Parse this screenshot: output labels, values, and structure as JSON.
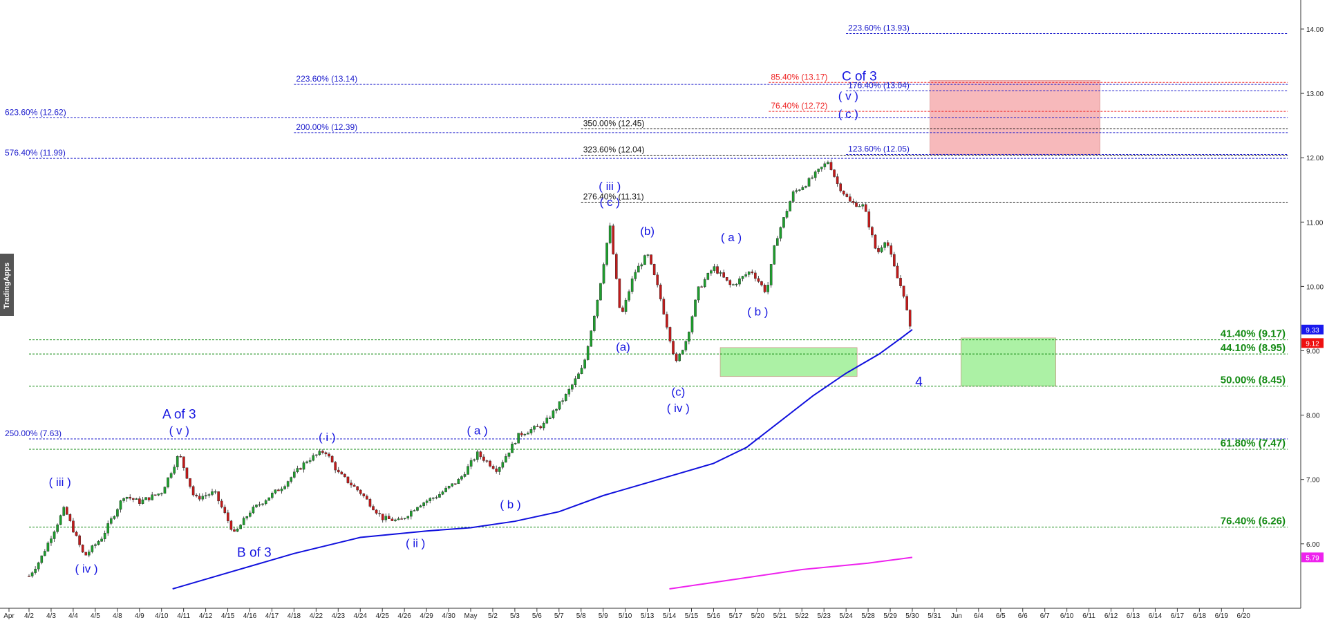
{
  "watermark": "TradingApps",
  "chart_data": {
    "type": "candlestick",
    "grid": false,
    "ylim": [
      5.3,
      14.3
    ],
    "y_ticks": [
      6,
      7,
      8,
      9,
      10,
      11,
      12,
      13,
      14
    ],
    "y_tick_labels": [
      "6.00",
      "7.00",
      "8.00",
      "9.00",
      "10.00",
      "11.00",
      "12.00",
      "13.00",
      "14.00"
    ],
    "x_tick_labels": [
      "Apr",
      "4/2",
      "4/3",
      "4/4",
      "4/5",
      "4/8",
      "4/9",
      "4/10",
      "4/11",
      "4/12",
      "4/15",
      "4/16",
      "4/17",
      "4/18",
      "4/22",
      "4/23",
      "4/24",
      "4/25",
      "4/26",
      "4/29",
      "4/30",
      "May",
      "5/2",
      "5/3",
      "5/6",
      "5/7",
      "5/8",
      "5/9",
      "5/10",
      "5/13",
      "5/14",
      "5/15",
      "5/16",
      "5/17",
      "5/20",
      "5/21",
      "5/22",
      "5/23",
      "5/24",
      "5/28",
      "5/29",
      "5/30",
      "5/31",
      "Jun",
      "6/4",
      "6/5",
      "6/6",
      "6/7",
      "6/10",
      "6/11",
      "6/12",
      "6/13",
      "6/14",
      "6/17",
      "6/18",
      "6/19",
      "6/20"
    ],
    "price_tags": [
      {
        "value": 9.33,
        "label": "9.33",
        "color": "#1a1aee"
      },
      {
        "value": 9.12,
        "label": "9.12",
        "color": "#ee1111"
      },
      {
        "value": 5.79,
        "label": "5.79",
        "color": "#ee22ee"
      }
    ],
    "key_prices": [
      {
        "t": 0.0,
        "v": 5.5
      },
      {
        "t": 0.5,
        "v": 5.75
      },
      {
        "t": 1.6,
        "v": 6.55
      },
      {
        "t": 2.5,
        "v": 5.8
      },
      {
        "t": 3.3,
        "v": 6.1
      },
      {
        "t": 4.3,
        "v": 6.75
      },
      {
        "t": 5.0,
        "v": 6.65
      },
      {
        "t": 6.0,
        "v": 6.8
      },
      {
        "t": 6.8,
        "v": 7.4
      },
      {
        "t": 7.5,
        "v": 6.7
      },
      {
        "t": 8.4,
        "v": 6.8
      },
      {
        "t": 9.3,
        "v": 6.15
      },
      {
        "t": 10.0,
        "v": 6.5
      },
      {
        "t": 11.5,
        "v": 6.9
      },
      {
        "t": 12.6,
        "v": 7.3
      },
      {
        "t": 13.4,
        "v": 7.45
      },
      {
        "t": 14.0,
        "v": 7.1
      },
      {
        "t": 15.0,
        "v": 6.8
      },
      {
        "t": 16.0,
        "v": 6.4
      },
      {
        "t": 16.8,
        "v": 6.35
      },
      {
        "t": 17.6,
        "v": 6.6
      },
      {
        "t": 18.5,
        "v": 6.75
      },
      {
        "t": 19.5,
        "v": 7.0
      },
      {
        "t": 20.3,
        "v": 7.4
      },
      {
        "t": 21.2,
        "v": 7.15
      },
      {
        "t": 22.2,
        "v": 7.7
      },
      {
        "t": 23.3,
        "v": 7.85
      },
      {
        "t": 24.3,
        "v": 8.3
      },
      {
        "t": 25.1,
        "v": 8.75
      },
      {
        "t": 25.8,
        "v": 9.9
      },
      {
        "t": 26.3,
        "v": 10.95
      },
      {
        "t": 26.8,
        "v": 9.5
      },
      {
        "t": 27.4,
        "v": 10.2
      },
      {
        "t": 28.0,
        "v": 10.5
      },
      {
        "t": 28.5,
        "v": 9.95
      },
      {
        "t": 29.3,
        "v": 8.8
      },
      {
        "t": 29.8,
        "v": 9.2
      },
      {
        "t": 30.3,
        "v": 9.95
      },
      {
        "t": 31.0,
        "v": 10.3
      },
      {
        "t": 31.8,
        "v": 10.0
      },
      {
        "t": 32.7,
        "v": 10.25
      },
      {
        "t": 33.4,
        "v": 9.9
      },
      {
        "t": 33.8,
        "v": 10.7
      },
      {
        "t": 34.6,
        "v": 11.45
      },
      {
        "t": 35.2,
        "v": 11.6
      },
      {
        "t": 36.2,
        "v": 11.95
      },
      {
        "t": 36.6,
        "v": 11.6
      },
      {
        "t": 37.2,
        "v": 11.3
      },
      {
        "t": 37.8,
        "v": 11.25
      },
      {
        "t": 38.4,
        "v": 10.5
      },
      {
        "t": 38.8,
        "v": 10.75
      },
      {
        "t": 39.3,
        "v": 10.15
      },
      {
        "t": 39.6,
        "v": 9.9
      },
      {
        "t": 40.0,
        "v": 9.15
      }
    ],
    "moving_averages": [
      {
        "color": "#1010dd",
        "points": [
          [
            6.5,
            5.3
          ],
          [
            9.0,
            5.55
          ],
          [
            12.0,
            5.85
          ],
          [
            15.0,
            6.1
          ],
          [
            18.0,
            6.2
          ],
          [
            20.0,
            6.25
          ],
          [
            22.0,
            6.35
          ],
          [
            24.0,
            6.5
          ],
          [
            26.0,
            6.75
          ],
          [
            28.0,
            6.95
          ],
          [
            29.5,
            7.1
          ],
          [
            31.0,
            7.25
          ],
          [
            32.5,
            7.5
          ],
          [
            34.0,
            7.9
          ],
          [
            35.5,
            8.3
          ],
          [
            37.0,
            8.65
          ],
          [
            38.5,
            8.95
          ],
          [
            39.5,
            9.2
          ],
          [
            40.0,
            9.33
          ]
        ]
      },
      {
        "color": "#ee22ee",
        "points": [
          [
            29.0,
            5.3
          ],
          [
            32.0,
            5.45
          ],
          [
            35.0,
            5.6
          ],
          [
            38.0,
            5.7
          ],
          [
            40.0,
            5.79
          ]
        ]
      }
    ],
    "levels": [
      {
        "value": 13.93,
        "label": "223.60% (13.93)",
        "color": "#1a1acc",
        "from": 37,
        "to": 57,
        "label_at": 37
      },
      {
        "value": 13.17,
        "label": "85.40% (13.17)",
        "color": "#ee2222",
        "from": 33.5,
        "to": 57,
        "label_at": 33.5
      },
      {
        "value": 13.14,
        "label": "223.60% (13.14)",
        "color": "#1a1acc",
        "from": 12,
        "to": 57,
        "label_at": 12
      },
      {
        "value": 13.04,
        "label": "176.40% (13.04)",
        "color": "#1a1acc",
        "from": 37,
        "to": 57,
        "label_at": 37
      },
      {
        "value": 12.72,
        "label": "76.40% (12.72)",
        "color": "#ee2222",
        "from": 33.5,
        "to": 57,
        "label_at": 33.5
      },
      {
        "value": 12.62,
        "label": "623.60% (12.62)",
        "color": "#1a1acc",
        "from": 0,
        "to": 57,
        "label_at": 0
      },
      {
        "value": 12.45,
        "label": "350.00% (12.45)",
        "color": "#111111",
        "from": 25,
        "to": 57,
        "label_at": 25
      },
      {
        "value": 12.39,
        "label": "200.00% (12.39)",
        "color": "#1a1acc",
        "from": 12,
        "to": 57,
        "label_at": 12
      },
      {
        "value": 12.05,
        "label": "123.60% (12.05)",
        "color": "#1a1acc",
        "from": 37,
        "to": 57,
        "label_at": 37
      },
      {
        "value": 12.04,
        "label": "323.60% (12.04)",
        "color": "#111111",
        "from": 25,
        "to": 57,
        "label_at": 25
      },
      {
        "value": 11.99,
        "label": "576.40% (11.99)",
        "color": "#1a1acc",
        "from": 0,
        "to": 57,
        "label_at": 0
      },
      {
        "value": 11.31,
        "label": "276.40% (11.31)",
        "color": "#111111",
        "from": 25,
        "to": 57,
        "label_at": 25
      },
      {
        "value": 7.63,
        "label": "250.00% (7.63)",
        "color": "#1a1acc",
        "from": 0,
        "to": 57,
        "label_at": 0
      },
      {
        "value": 9.17,
        "label": "41.40% (9.17)",
        "color": "#128a12",
        "from": 0,
        "to": 57,
        "label_at": "right"
      },
      {
        "value": 8.95,
        "label": "44.10% (8.95)",
        "color": "#128a12",
        "from": 0,
        "to": 57,
        "label_at": "right"
      },
      {
        "value": 8.45,
        "label": "50.00% (8.45)",
        "color": "#128a12",
        "from": 0,
        "to": 57,
        "label_at": "right"
      },
      {
        "value": 7.47,
        "label": "61.80% (7.47)",
        "color": "#128a12",
        "from": 0,
        "to": 57,
        "label_at": "right"
      },
      {
        "value": 6.26,
        "label": "76.40% (6.26)",
        "color": "#128a12",
        "from": 0,
        "to": 57,
        "label_at": "right"
      }
    ],
    "zones": [
      {
        "from": 31.3,
        "to": 37.5,
        "low": 8.6,
        "high": 9.05,
        "color": "#a8f0a0"
      },
      {
        "from": 42.2,
        "to": 46.5,
        "low": 8.45,
        "high": 9.2,
        "color": "#a8f0a0"
      },
      {
        "from": 40.8,
        "to": 48.5,
        "low": 12.05,
        "high": 13.2,
        "color": "#f7b5b7"
      }
    ],
    "annotations": [
      {
        "text": "( iii )",
        "t": 1.4,
        "v": 6.9,
        "size": 17
      },
      {
        "text": "( iv )",
        "t": 2.6,
        "v": 5.55,
        "size": 17
      },
      {
        "text": "A of 3",
        "t": 6.8,
        "v": 7.95,
        "size": 19
      },
      {
        "text": "( v )",
        "t": 6.8,
        "v": 7.7,
        "size": 17
      },
      {
        "text": "B of 3",
        "t": 10.2,
        "v": 5.8,
        "size": 19
      },
      {
        "text": "( i )",
        "t": 13.5,
        "v": 7.6,
        "size": 17
      },
      {
        "text": "( ii )",
        "t": 17.5,
        "v": 5.95,
        "size": 17
      },
      {
        "text": "( a )",
        "t": 20.3,
        "v": 7.7,
        "size": 17
      },
      {
        "text": "( b )",
        "t": 21.8,
        "v": 6.55,
        "size": 17
      },
      {
        "text": "( iii )",
        "t": 26.3,
        "v": 11.5,
        "size": 17
      },
      {
        "text": "( c )",
        "t": 26.3,
        "v": 11.25,
        "size": 17
      },
      {
        "text": "(b)",
        "t": 28.0,
        "v": 10.8,
        "size": 17
      },
      {
        "text": "(a)",
        "t": 26.9,
        "v": 9.0,
        "size": 17
      },
      {
        "text": "(c)",
        "t": 29.4,
        "v": 8.3,
        "size": 17
      },
      {
        "text": "( iv )",
        "t": 29.4,
        "v": 8.05,
        "size": 17
      },
      {
        "text": "( a )",
        "t": 31.8,
        "v": 10.7,
        "size": 17
      },
      {
        "text": "( b )",
        "t": 33.0,
        "v": 9.55,
        "size": 17
      },
      {
        "text": "C of 3",
        "t": 37.6,
        "v": 13.2,
        "size": 19
      },
      {
        "text": "( v )",
        "t": 37.1,
        "v": 12.9,
        "size": 17
      },
      {
        "text": "( c )",
        "t": 37.1,
        "v": 12.62,
        "size": 17
      },
      {
        "text": "4",
        "t": 40.3,
        "v": 8.45,
        "size": 19
      }
    ]
  }
}
